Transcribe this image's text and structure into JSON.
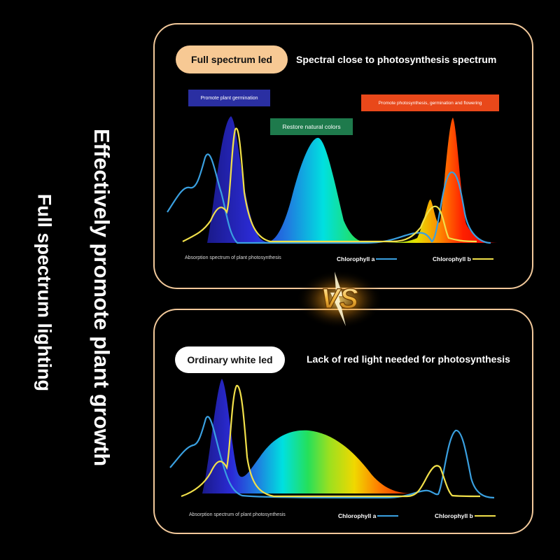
{
  "side_text": {
    "line1": "Effectively promote plant growth",
    "line2": "Full spectrum lighting"
  },
  "top_panel": {
    "pill": "Full spectrum led",
    "heading": "Spectral close to photosynthesis spectrum",
    "tag_germination": "Promote plant germination",
    "tag_natural": "Restore natural colors",
    "tag_photosynthesis": "Promote photosynthesis, germination and flowering",
    "caption": "Absorption spectrum of plant photosynthesis",
    "legend_a": "Chlorophyll a",
    "legend_b": "Chlorophyll b"
  },
  "vs_label": "VS",
  "bottom_panel": {
    "pill": "Ordinary white led",
    "heading": "Lack of red light needed for photosynthesis",
    "caption": "Absorption spectrum of plant photosynthesis",
    "legend_a": "Chlorophyll a",
    "legend_b": "Chlorophyll b"
  },
  "colors": {
    "accent_border": "#f2c99b",
    "pill_top": "#f7c994",
    "chlorophyll_a": "#3aa0e0",
    "chlorophyll_b": "#f1e04a"
  }
}
